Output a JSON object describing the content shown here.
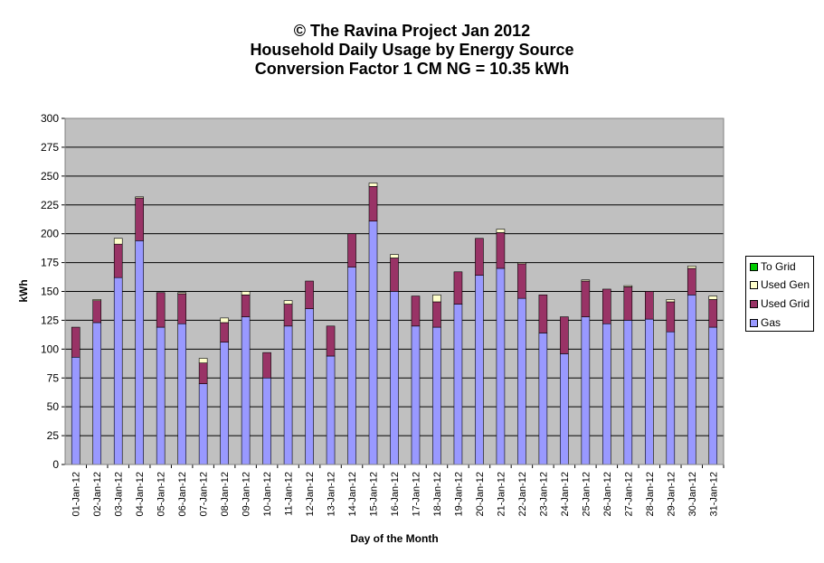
{
  "chart_data": {
    "type": "bar",
    "stacked": true,
    "title_lines": [
      "© The Ravina Project Jan 2012",
      "Household Daily Usage by Energy Source",
      "Conversion Factor 1 CM NG = 10.35 kWh"
    ],
    "xlabel": "Day of the Month",
    "ylabel": "kWh",
    "ylim": [
      0,
      300
    ],
    "yticks": [
      0,
      25,
      50,
      75,
      100,
      125,
      150,
      175,
      200,
      225,
      250,
      275,
      300
    ],
    "grid": true,
    "legend_position": "right",
    "categories": [
      "01-Jan-12",
      "02-Jan-12",
      "03-Jan-12",
      "04-Jan-12",
      "05-Jan-12",
      "06-Jan-12",
      "07-Jan-12",
      "08-Jan-12",
      "09-Jan-12",
      "10-Jan-12",
      "11-Jan-12",
      "12-Jan-12",
      "13-Jan-12",
      "14-Jan-12",
      "15-Jan-12",
      "16-Jan-12",
      "17-Jan-12",
      "18-Jan-12",
      "19-Jan-12",
      "20-Jan-12",
      "21-Jan-12",
      "22-Jan-12",
      "23-Jan-12",
      "24-Jan-12",
      "25-Jan-12",
      "26-Jan-12",
      "27-Jan-12",
      "28-Jan-12",
      "29-Jan-12",
      "30-Jan-12",
      "31-Jan-12"
    ],
    "series": [
      {
        "name": "Gas",
        "color": "#9999ff",
        "values": [
          93,
          123,
          162,
          194,
          119,
          122,
          70,
          106,
          128,
          75,
          120,
          135,
          94,
          171,
          211,
          150,
          120,
          119,
          139,
          164,
          170,
          144,
          114,
          96,
          128,
          122,
          125,
          126,
          115,
          147,
          119
        ]
      },
      {
        "name": "Used Grid",
        "color": "#993366",
        "values": [
          26,
          19,
          29,
          37,
          30,
          26,
          18,
          17,
          19,
          22,
          19,
          24,
          26,
          29,
          30,
          29,
          26,
          22,
          28,
          32,
          31,
          30,
          33,
          32,
          31,
          30,
          29,
          24,
          26,
          23,
          24
        ]
      },
      {
        "name": "Used Gen",
        "color": "#ffffcc",
        "values": [
          0,
          1,
          5,
          1,
          0,
          1,
          4,
          4,
          3,
          0,
          3,
          0,
          0,
          0,
          3,
          3,
          0,
          6,
          0,
          0,
          3,
          1,
          0,
          0,
          1,
          0,
          1,
          0,
          2,
          2,
          3
        ]
      },
      {
        "name": "To Grid",
        "color": "#00cc00",
        "values": [
          0,
          0,
          0,
          0,
          0,
          0,
          0,
          0,
          0,
          0,
          0,
          0,
          0,
          0,
          0,
          0,
          0,
          0,
          0,
          0,
          0,
          0,
          0,
          0,
          0,
          0,
          0,
          0,
          0,
          0,
          0
        ]
      }
    ],
    "legend_order": [
      "To Grid",
      "Used Gen",
      "Used Grid",
      "Gas"
    ],
    "plot_background": "#c0c0c0"
  }
}
